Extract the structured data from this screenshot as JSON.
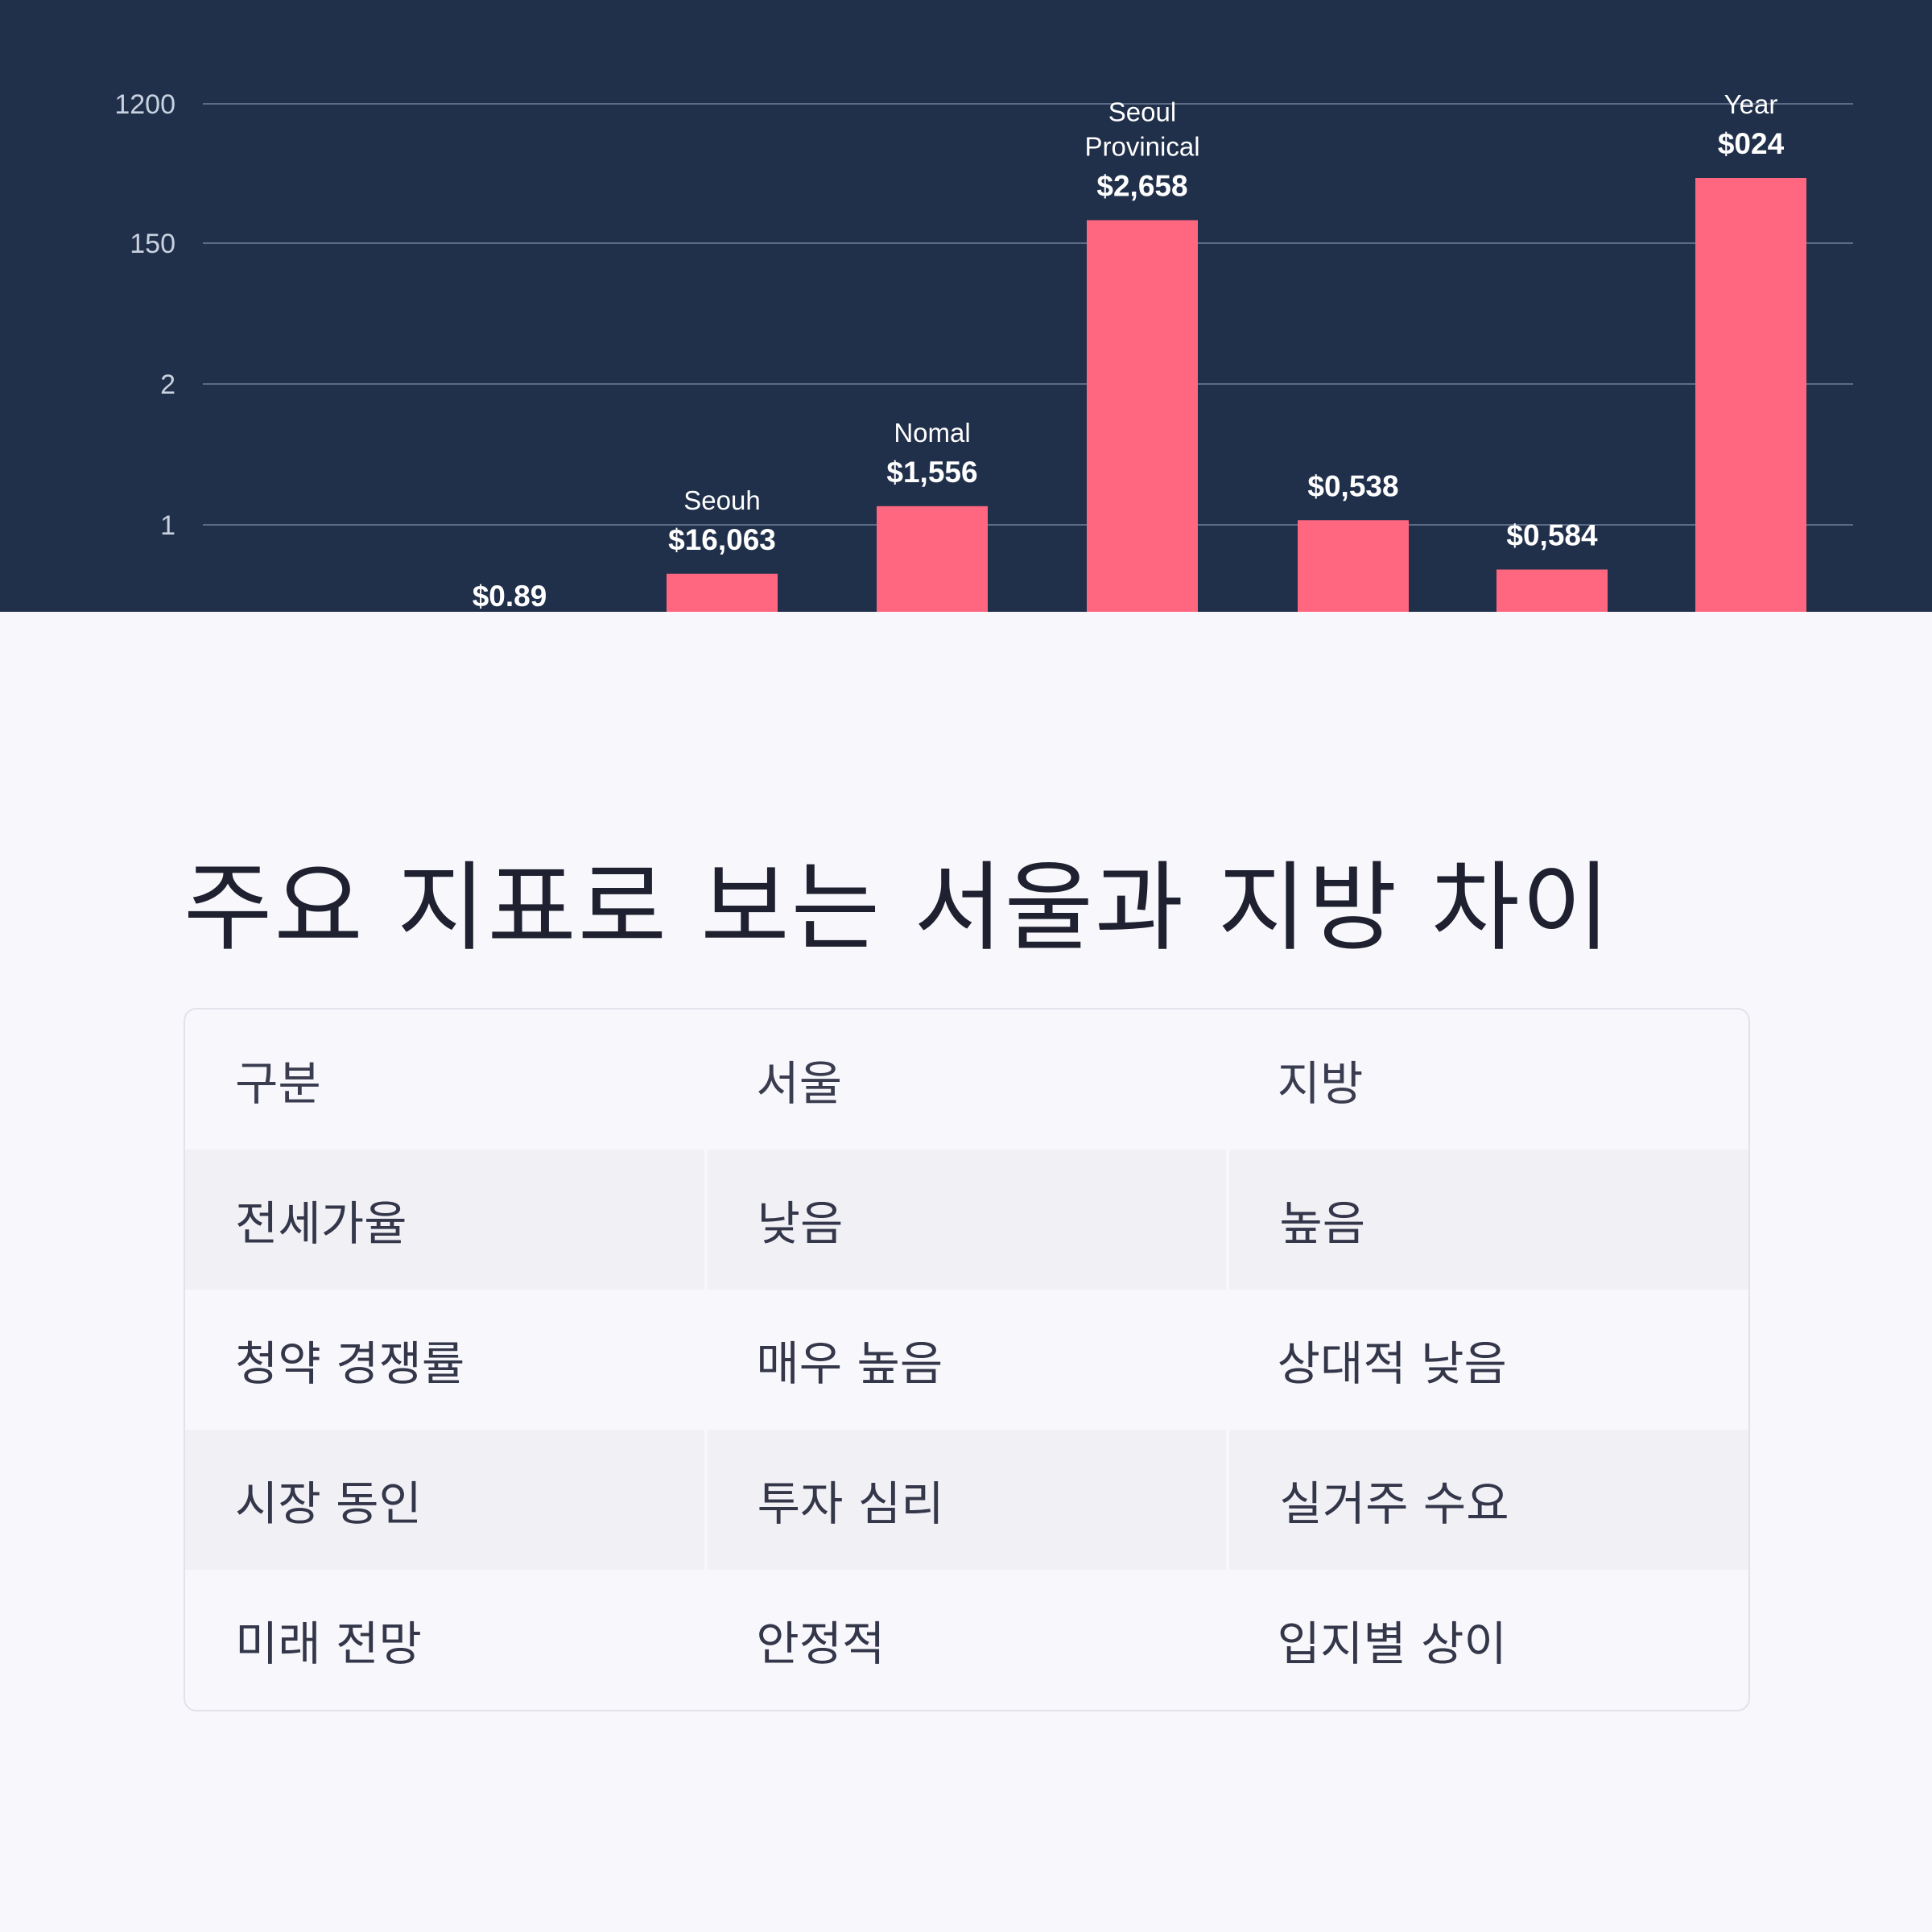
{
  "colors": {
    "panel_bg": "#20304a",
    "bar": "#ff6680",
    "grid": "#5b6b85",
    "text_light": "#ffffff",
    "axis_text": "#c9d1e0"
  },
  "chart_data": {
    "type": "bar",
    "y_ticks": [
      "1200",
      "150",
      "2",
      "1"
    ],
    "grid": true,
    "categories": [
      "",
      "",
      "Seouh",
      "Nomal",
      "Seoul Provinical",
      "",
      "",
      "Year"
    ],
    "value_labels": [
      "",
      "$0.89",
      "$16,063",
      "$1,556",
      "$2,658",
      "$0,538",
      "$0,584",
      "$024"
    ],
    "heights_in_ticks": [
      null,
      null,
      0.27,
      0.75,
      2.78,
      0.65,
      0.3,
      3.08
    ]
  },
  "title": "주요 지표로 보는 서울과 지방 차이",
  "table": {
    "header": [
      "구분",
      "서울",
      "지방"
    ],
    "rows": [
      [
        "전세가율",
        "낮음",
        "높음"
      ],
      [
        "청약 경쟁률",
        "매우 높음",
        "상대적 낮음"
      ],
      [
        "시장 동인",
        "투자 심리",
        "실거주 수요"
      ],
      [
        "미래 전망",
        "안정적",
        "입지별 상이"
      ]
    ]
  }
}
